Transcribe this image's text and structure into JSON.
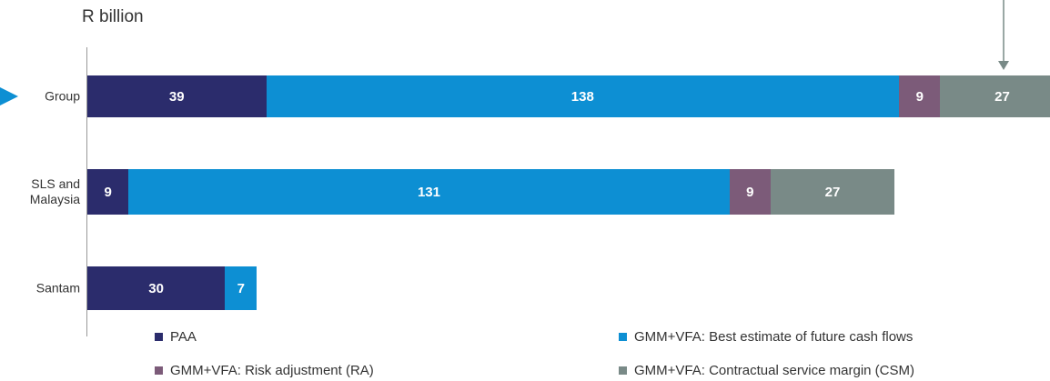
{
  "chart_data": {
    "type": "stacked-bar-horizontal",
    "title": "R billion",
    "categories": [
      "Group",
      "SLS and Malaysia",
      "Santam"
    ],
    "series": [
      {
        "name": "PAA",
        "color": "#2b2c6c",
        "values": [
          39,
          9,
          30
        ]
      },
      {
        "name": "GMM+VFA: Best estimate of future cash flows",
        "color": "#0d8fd3",
        "values": [
          138,
          131,
          7
        ]
      },
      {
        "name": "GMM+VFA: Risk adjustment (RA)",
        "color": "#7c5b79",
        "values": [
          9,
          9,
          null
        ]
      },
      {
        "name": "GMM+VFA: Contractual service margin (CSM)",
        "color": "#798a87",
        "values": [
          27,
          27,
          null
        ]
      }
    ]
  }
}
